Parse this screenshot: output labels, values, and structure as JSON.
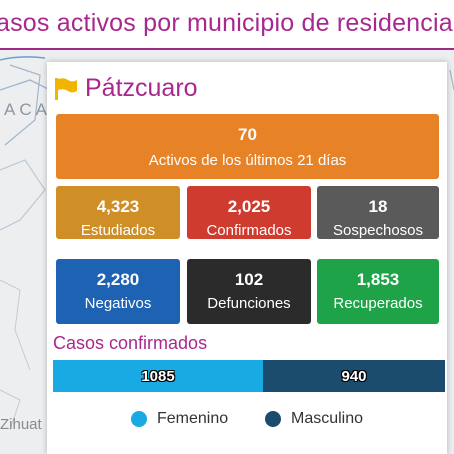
{
  "header": {
    "title": "asos activos por municipio de residencia"
  },
  "map": {
    "label_region": "ACA",
    "label_city": "Zihuat"
  },
  "card": {
    "municipality": "Pátzcuaro",
    "flag_icon": "flag-icon",
    "active": {
      "value": "70",
      "label": "Activos de los últimos 21 días",
      "color": "#e88226"
    },
    "stats": [
      {
        "value": "4,323",
        "label": "Estudiados",
        "color": "#cf8f26"
      },
      {
        "value": "2,025",
        "label": "Confirmados",
        "color": "#cf3b2f"
      },
      {
        "value": "18",
        "label": "Sospechosos",
        "color": "#5a5a5a"
      },
      {
        "value": "2,280",
        "label": "Negativos",
        "color": "#1e62b3"
      },
      {
        "value": "102",
        "label": "Defunciones",
        "color": "#2b2b2b"
      },
      {
        "value": "1,853",
        "label": "Recuperados",
        "color": "#1fa348"
      }
    ],
    "section_title": "Casos confirmados"
  },
  "chart_data": {
    "type": "bar",
    "orientation": "horizontal-stacked",
    "categories": [
      "Femenino",
      "Masculino"
    ],
    "values": [
      1085,
      940
    ],
    "colors": [
      "#1aaae3",
      "#1b4c6d"
    ],
    "data_labels": [
      "1085",
      "940"
    ],
    "legend": {
      "entries": [
        "Femenino",
        "Masculino"
      ],
      "placement": "bottom"
    }
  }
}
